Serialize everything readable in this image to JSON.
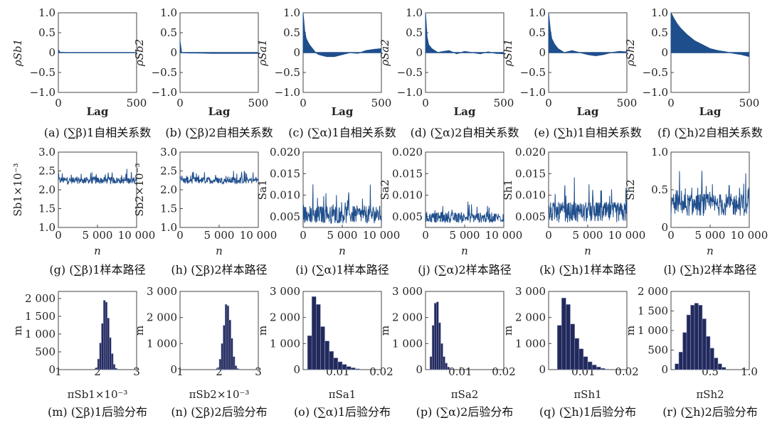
{
  "chart_data": [
    {
      "id": "a",
      "type": "area",
      "caption": "(a) (∑β)1自相关系数",
      "ylabel": "ρSb1",
      "xlabel": "Lag",
      "xlim": [
        0,
        500
      ],
      "ylim": [
        -1,
        1
      ],
      "xticks": [
        "0",
        "500"
      ],
      "yticks": [
        "1.0",
        "0.5",
        "0",
        "−0.5",
        "−1.0"
      ],
      "x": [
        0,
        10,
        50,
        100,
        200,
        300,
        400,
        500
      ],
      "values": [
        0.08,
        0.01,
        0.0,
        0.0,
        0.0,
        0.0,
        0.0,
        0.0
      ]
    },
    {
      "id": "b",
      "type": "area",
      "caption": "(b) (∑β)2自相关系数",
      "ylabel": "ρSb2",
      "xlabel": "Lag",
      "xlim": [
        0,
        500
      ],
      "ylim": [
        -1,
        1
      ],
      "xticks": [
        "0",
        "500"
      ],
      "yticks": [
        "1.0",
        "0.5",
        "0",
        "−0.5",
        "−1.0"
      ],
      "x": [
        0,
        10,
        50,
        100,
        200,
        300,
        400,
        500
      ],
      "values": [
        0.3,
        0.0,
        -0.01,
        -0.01,
        -0.02,
        -0.02,
        -0.02,
        -0.02
      ]
    },
    {
      "id": "c",
      "type": "area",
      "caption": "(c) (∑α)1自相关系数",
      "ylabel": "ρSa1",
      "xlabel": "Lag",
      "xlim": [
        0,
        500
      ],
      "ylim": [
        -1,
        1
      ],
      "xticks": [
        "0",
        "500"
      ],
      "yticks": [
        "1.0",
        "0.5",
        "0",
        "−0.5",
        "−1.0"
      ],
      "x": [
        0,
        10,
        20,
        40,
        60,
        80,
        100,
        150,
        200,
        250,
        300,
        350,
        400,
        450,
        500
      ],
      "values": [
        1.0,
        0.55,
        0.35,
        0.2,
        0.1,
        0.0,
        -0.05,
        -0.1,
        -0.1,
        -0.05,
        0.0,
        -0.02,
        0.05,
        0.08,
        0.1
      ]
    },
    {
      "id": "d",
      "type": "area",
      "caption": "(d) (∑α)2自相关系数",
      "ylabel": "ρSa2",
      "xlabel": "Lag",
      "xlim": [
        0,
        500
      ],
      "ylim": [
        -1,
        1
      ],
      "xticks": [
        "0",
        "500"
      ],
      "yticks": [
        "1.0",
        "0.5",
        "0",
        "−0.5",
        "−1.0"
      ],
      "x": [
        0,
        10,
        20,
        40,
        60,
        80,
        100,
        150,
        200,
        250,
        300,
        350,
        400,
        450,
        500
      ],
      "values": [
        1.0,
        0.4,
        0.2,
        0.1,
        0.05,
        0.0,
        0.02,
        0.05,
        -0.03,
        0.03,
        0.0,
        -0.03,
        0.02,
        -0.02,
        -0.03
      ]
    },
    {
      "id": "e",
      "type": "area",
      "caption": "(e) (∑h)1自相关系数",
      "ylabel": "ρSh1",
      "xlabel": "Lag",
      "xlim": [
        0,
        500
      ],
      "ylim": [
        -1,
        1
      ],
      "xticks": [
        "0",
        "500"
      ],
      "yticks": [
        "1.0",
        "0.5",
        "0",
        "−0.5",
        "−1.0"
      ],
      "x": [
        0,
        10,
        20,
        40,
        60,
        80,
        100,
        150,
        200,
        250,
        300,
        350,
        400,
        450,
        500
      ],
      "values": [
        1.0,
        0.6,
        0.35,
        0.2,
        0.1,
        0.05,
        0.0,
        0.05,
        0.0,
        -0.05,
        -0.08,
        -0.05,
        0.0,
        0.03,
        0.02
      ]
    },
    {
      "id": "f",
      "type": "area",
      "caption": "(f) (∑h)2自相关系数",
      "ylabel": "ρSh2",
      "xlabel": "Lag",
      "xlim": [
        0,
        500
      ],
      "ylim": [
        -1,
        1
      ],
      "xticks": [
        "0",
        "500"
      ],
      "yticks": [
        "1.0",
        "0.5",
        "0",
        "−0.5",
        "−1.0"
      ],
      "x": [
        0,
        20,
        40,
        60,
        80,
        100,
        150,
        200,
        250,
        300,
        350,
        400,
        450,
        500
      ],
      "values": [
        1.0,
        0.85,
        0.72,
        0.62,
        0.54,
        0.46,
        0.3,
        0.2,
        0.1,
        0.05,
        0.02,
        -0.02,
        -0.05,
        -0.1
      ]
    },
    {
      "id": "g",
      "type": "line",
      "caption": "(g) (∑β)1样本路径",
      "ylabel": "Sb1×10⁻³",
      "xlabel": "n",
      "xlim": [
        0,
        10000
      ],
      "ylim": [
        1.0,
        3.0
      ],
      "xticks": [
        "0",
        "5 000",
        "10 000"
      ],
      "yticks": [
        "3.0",
        "2.5",
        "2.0",
        "1.5",
        "1.0"
      ],
      "mean": 2.25,
      "spread": 0.15
    },
    {
      "id": "h",
      "type": "line",
      "caption": "(h) (∑β)2样本路径",
      "ylabel": "Sb2×10⁻³",
      "xlabel": "n",
      "xlim": [
        0,
        10000
      ],
      "ylim": [
        1.0,
        3.0
      ],
      "xticks": [
        "0",
        "5 000",
        "10 000"
      ],
      "yticks": [
        "3.0",
        "2.5",
        "2.0",
        "1.5",
        "1.0"
      ],
      "mean": 2.25,
      "spread": 0.15
    },
    {
      "id": "i",
      "type": "line",
      "caption": "(i) (∑α)1样本路径",
      "ylabel": "Sa1",
      "xlabel": "n",
      "xlim": [
        0,
        10000
      ],
      "ylim": [
        0.0025,
        0.02
      ],
      "xticks": [
        "0",
        "5 000",
        "10 000"
      ],
      "yticks": [
        "0.020",
        "0.015",
        "0.010",
        "0.005"
      ],
      "mean": 0.0055,
      "spread": 0.0035
    },
    {
      "id": "j",
      "type": "line",
      "caption": "(j) (∑α)2样本路径",
      "ylabel": "Sa2",
      "xlabel": "n",
      "xlim": [
        0,
        10000
      ],
      "ylim": [
        0.0025,
        0.02
      ],
      "xticks": [
        "0",
        "5 000",
        "10 000"
      ],
      "yticks": [
        "0.020",
        "0.015",
        "0.010",
        "0.005"
      ],
      "mean": 0.0048,
      "spread": 0.002
    },
    {
      "id": "k",
      "type": "line",
      "caption": "(k) (∑h)1样本路径",
      "ylabel": "Sh1",
      "xlabel": "n",
      "xlim": [
        0,
        10000
      ],
      "ylim": [
        0.0025,
        0.02
      ],
      "xticks": [
        "0",
        "5 000",
        "10 000"
      ],
      "yticks": [
        "0.020",
        "0.015",
        "0.010",
        "0.005"
      ],
      "mean": 0.006,
      "spread": 0.004
    },
    {
      "id": "l",
      "type": "line",
      "caption": "(l) (∑h)2样本路径",
      "ylabel": "Sh2",
      "xlabel": "n",
      "xlim": [
        0,
        10000
      ],
      "ylim": [
        0,
        1.0
      ],
      "xticks": [
        "0",
        "5 000",
        "10 000"
      ],
      "yticks": [
        "1.0",
        "0.5",
        "0"
      ],
      "mean": 0.3,
      "spread": 0.25
    },
    {
      "id": "m",
      "type": "bar",
      "caption": "(m) (∑β)1后验分布",
      "ylabel": "m",
      "xlabel": "πSb1×10⁻³",
      "xlim": [
        1,
        3
      ],
      "ylim": [
        0,
        2200
      ],
      "xticks": [
        "1",
        "2",
        "3"
      ],
      "yticks": [
        "2 000",
        "1 500",
        "1 000",
        "500",
        "0"
      ],
      "bin_edges": [
        1.95,
        2.0,
        2.05,
        2.1,
        2.15,
        2.2,
        2.25,
        2.3,
        2.35,
        2.4,
        2.45,
        2.5
      ],
      "values": [
        50,
        300,
        750,
        1300,
        1950,
        1900,
        1450,
        900,
        450,
        150,
        40
      ]
    },
    {
      "id": "n",
      "type": "bar",
      "caption": "(n) (∑β)2后验分布",
      "ylabel": "m",
      "xlabel": "πSb2×10⁻³",
      "xlim": [
        1,
        3
      ],
      "ylim": [
        0,
        3000
      ],
      "xticks": [
        "1",
        "2",
        "3"
      ],
      "yticks": [
        "3 000",
        "2 000",
        "1 000",
        "0"
      ],
      "bin_edges": [
        1.95,
        2.0,
        2.05,
        2.1,
        2.15,
        2.2,
        2.25,
        2.3,
        2.35,
        2.4,
        2.45,
        2.5
      ],
      "values": [
        50,
        400,
        1000,
        1700,
        2500,
        2450,
        1900,
        1200,
        500,
        150,
        40
      ]
    },
    {
      "id": "o",
      "type": "bar",
      "caption": "(o) (∑α)1后验分布",
      "ylabel": "m",
      "xlabel": "πSa1",
      "xlim": [
        0.002,
        0.02
      ],
      "ylim": [
        0,
        3000
      ],
      "xticks": [
        "0.01",
        "0.02"
      ],
      "yticks": [
        "3 000",
        "2 000",
        "1 000",
        "0"
      ],
      "bin_edges": [
        0.003,
        0.004,
        0.005,
        0.006,
        0.007,
        0.008,
        0.009,
        0.01,
        0.011,
        0.012,
        0.013,
        0.014,
        0.015
      ],
      "values": [
        1300,
        2800,
        2500,
        1650,
        1100,
        700,
        450,
        300,
        200,
        120,
        70,
        30
      ]
    },
    {
      "id": "p",
      "type": "bar",
      "caption": "(p) (∑α)2后验分布",
      "ylabel": "m",
      "xlabel": "πSa2",
      "xlim": [
        0.002,
        0.02
      ],
      "ylim": [
        0,
        3000
      ],
      "xticks": [
        "0.01",
        "0.02"
      ],
      "yticks": [
        "3 000",
        "2 000",
        "1 000",
        "0"
      ],
      "bin_edges": [
        0.003,
        0.0035,
        0.004,
        0.0045,
        0.005,
        0.0055,
        0.006,
        0.0065,
        0.007,
        0.0075,
        0.008
      ],
      "values": [
        500,
        1700,
        2550,
        2600,
        1800,
        1000,
        500,
        250,
        100,
        40
      ]
    },
    {
      "id": "q",
      "type": "bar",
      "caption": "(q) (∑h)1后验分布",
      "ylabel": "m",
      "xlabel": "πSh1",
      "xlim": [
        0.002,
        0.02
      ],
      "ylim": [
        0,
        3000
      ],
      "xticks": [
        "0.01",
        "0.02"
      ],
      "yticks": [
        "3 000",
        "2 000",
        "1 000",
        "0"
      ],
      "bin_edges": [
        0.004,
        0.005,
        0.006,
        0.007,
        0.008,
        0.009,
        0.01,
        0.011,
        0.012,
        0.013,
        0.014,
        0.015,
        0.016
      ],
      "values": [
        1700,
        2750,
        2500,
        1750,
        1200,
        800,
        500,
        300,
        180,
        100,
        50,
        20
      ]
    },
    {
      "id": "r",
      "type": "bar",
      "caption": "(r) (∑h)2后验分布",
      "ylabel": "m",
      "xlabel": "πSh2",
      "xlim": [
        0,
        1.0
      ],
      "ylim": [
        0,
        2000
      ],
      "xticks": [
        "0.5",
        "1.0"
      ],
      "yticks": [
        "2 000",
        "1 500",
        "1 000",
        "500",
        "0"
      ],
      "bin_edges": [
        0.05,
        0.1,
        0.15,
        0.2,
        0.25,
        0.3,
        0.35,
        0.4,
        0.45,
        0.5,
        0.55,
        0.6,
        0.65,
        0.7
      ],
      "values": [
        150,
        450,
        950,
        1400,
        1650,
        1700,
        1650,
        1300,
        850,
        550,
        300,
        150,
        60
      ]
    }
  ]
}
